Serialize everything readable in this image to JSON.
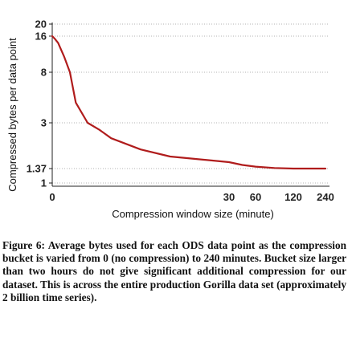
{
  "chart_data": {
    "type": "line",
    "title": "",
    "xlabel": "Compression window size (minute)",
    "ylabel": "Compressed bytes per data point",
    "y_ticks": [
      "1",
      "1.37",
      "3",
      "8",
      "16",
      "20"
    ],
    "x_ticks": [
      "0",
      "30",
      "60",
      "120",
      "240"
    ],
    "ylim": [
      0,
      20
    ],
    "xlim": [
      0,
      240
    ],
    "grid": true,
    "grid_style": "horizontal dotted at y tick values",
    "line_color": "#b01c1c",
    "series": [
      {
        "x": [
          0,
          0.5,
          1,
          2,
          3,
          4,
          6,
          8,
          10,
          15,
          20,
          30,
          45,
          60,
          90,
          120,
          180,
          240
        ],
        "values": [
          16,
          15.3,
          14.5,
          11.5,
          8,
          5,
          3,
          2.75,
          2.45,
          2.05,
          1.8,
          1.6,
          1.5,
          1.44,
          1.39,
          1.37,
          1.37,
          1.37
        ]
      }
    ]
  },
  "caption": "Figure 6: Average bytes used for each ODS data point as the compression bucket is varied from 0 (no compression) to 240 minutes. Bucket size larger than two hours do not give significant additional compression for our dataset. This is across the entire production Gorilla data set (approximately 2 billion time series)."
}
